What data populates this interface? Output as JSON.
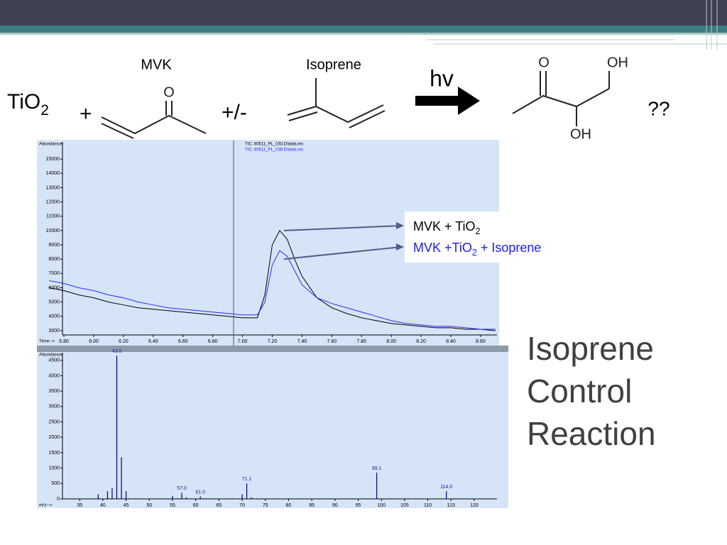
{
  "slide": {
    "title_lines": [
      "Isoprene",
      "Control",
      "Reaction"
    ],
    "scheme": {
      "reagent": {
        "text": "TiO",
        "sub": "2"
      },
      "plus": "+",
      "mvk_label": "MVK",
      "plus_minus": "+/-",
      "isoprene_label": "Isoprene",
      "hv": "hv",
      "unknown": "??",
      "atoms": [
        "O",
        "O",
        "OH",
        "OH"
      ]
    }
  },
  "chart_data": [
    {
      "type": "line",
      "y_label": "Abundance",
      "x_label": "Time-->",
      "x": [
        5.7,
        5.8,
        5.9,
        6.0,
        6.1,
        6.2,
        6.3,
        6.4,
        6.5,
        6.6,
        6.7,
        6.8,
        6.9,
        7.0,
        7.1,
        7.15,
        7.2,
        7.25,
        7.3,
        7.35,
        7.4,
        7.5,
        7.6,
        7.7,
        7.8,
        7.9,
        8.0,
        8.1,
        8.2,
        8.3,
        8.4,
        8.5,
        8.6,
        8.7
      ],
      "series": [
        {
          "name": "TIC: 80511_PL_033.D\\data.ms",
          "color": "#000000",
          "values": [
            6000,
            5800,
            5500,
            5300,
            5000,
            4800,
            4600,
            4500,
            4400,
            4300,
            4200,
            4100,
            4000,
            3900,
            3900,
            5500,
            9000,
            10000,
            9400,
            8000,
            6800,
            5300,
            4600,
            4200,
            3900,
            3700,
            3500,
            3400,
            3300,
            3200,
            3200,
            3100,
            3100,
            3000
          ]
        },
        {
          "name": "TIC: 80511_PL_038.D\\data.ms",
          "color": "#2a2aff",
          "values": [
            6500,
            6300,
            6000,
            5800,
            5500,
            5300,
            5000,
            4800,
            4600,
            4500,
            4400,
            4300,
            4200,
            4100,
            4100,
            5000,
            7600,
            8600,
            8200,
            7200,
            6200,
            5300,
            4900,
            4600,
            4300,
            4000,
            3700,
            3500,
            3400,
            3300,
            3300,
            3200,
            3100,
            3100
          ]
        }
      ],
      "annotations": [
        {
          "text": "MVK + TiO",
          "sub": "2",
          "color": "#000000"
        },
        {
          "text": "MVK +TiO",
          "sub": "2",
          "after": " + Isoprene",
          "color": "#1a1aff"
        }
      ],
      "cursor_x": 6.94,
      "xlim": [
        5.79,
        8.71
      ],
      "ylim": [
        2700,
        16200
      ],
      "xticks": [
        {
          "value": 5.8,
          "label": "5.80"
        },
        {
          "value": 6.0,
          "label": "6.00"
        },
        {
          "value": 6.2,
          "label": "6.20"
        },
        {
          "value": 6.4,
          "label": "6.40"
        },
        {
          "value": 6.6,
          "label": "6.60"
        },
        {
          "value": 6.8,
          "label": "6.80"
        },
        {
          "value": 7.0,
          "label": "7.00"
        },
        {
          "value": 7.2,
          "label": "7.20"
        },
        {
          "value": 7.4,
          "label": "7.40"
        },
        {
          "value": 7.6,
          "label": "7.60"
        },
        {
          "value": 7.8,
          "label": "7.80"
        },
        {
          "value": 8.0,
          "label": "8.00"
        },
        {
          "value": 8.2,
          "label": "8.20"
        },
        {
          "value": 8.4,
          "label": "8.40"
        },
        {
          "value": 8.6,
          "label": "8.60"
        }
      ],
      "yticks": [
        3000,
        4000,
        5000,
        6000,
        7000,
        8000,
        9000,
        10000,
        11000,
        12000,
        13000,
        14000,
        15000
      ]
    },
    {
      "type": "bar",
      "y_label": "Abundance",
      "x_label": "m/z-->",
      "color": "#000080",
      "x": [
        39,
        41,
        42,
        43,
        44,
        45,
        55,
        57,
        58,
        61,
        70,
        71,
        72,
        99,
        114
      ],
      "values": [
        150,
        250,
        350,
        4650,
        1350,
        250,
        100,
        200,
        50,
        80,
        150,
        500,
        50,
        850,
        250
      ],
      "x_labels": [
        null,
        null,
        null,
        "43.0",
        null,
        null,
        null,
        "57.0",
        null,
        "61.0",
        null,
        "71.1",
        null,
        "99.1",
        "114.0"
      ],
      "xlim": [
        31.3,
        124.9
      ],
      "ylim": [
        0,
        4750
      ],
      "xticks": [
        35,
        40,
        45,
        50,
        55,
        60,
        65,
        70,
        75,
        80,
        85,
        90,
        95,
        100,
        105,
        110,
        115,
        120
      ],
      "yticks": [
        0,
        500,
        1000,
        1500,
        2000,
        2500,
        3000,
        3500,
        4000,
        4500
      ]
    }
  ]
}
